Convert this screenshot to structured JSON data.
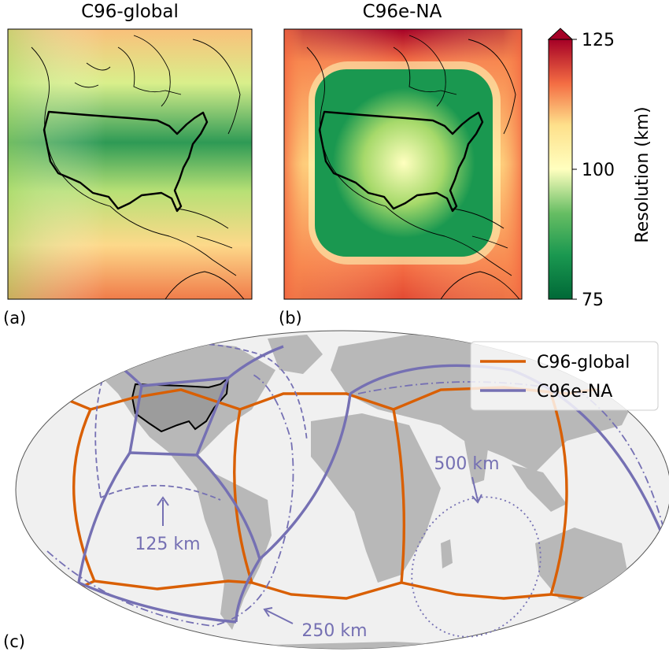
{
  "panels": {
    "a": {
      "title": "C96-global",
      "label": "(a)"
    },
    "b": {
      "title": "C96e-NA",
      "label": "(b)"
    },
    "c": {
      "label": "(c)"
    }
  },
  "colorbar": {
    "label": "Resolution (km)",
    "ticks": [
      "125",
      "100",
      "75"
    ],
    "min": 75,
    "max": 125,
    "colormap": [
      "#006837",
      "#66bd63",
      "#d9ef8b",
      "#ffffbf",
      "#fee08b",
      "#f46d43",
      "#a50026"
    ]
  },
  "legend": {
    "items": [
      {
        "name": "C96-global",
        "color": "#d95f02"
      },
      {
        "name": "C96e-NA",
        "color": "#7570b3"
      }
    ]
  },
  "annotations": {
    "a125": "125 km",
    "a250": "250 km",
    "a500": "500 km"
  }
}
